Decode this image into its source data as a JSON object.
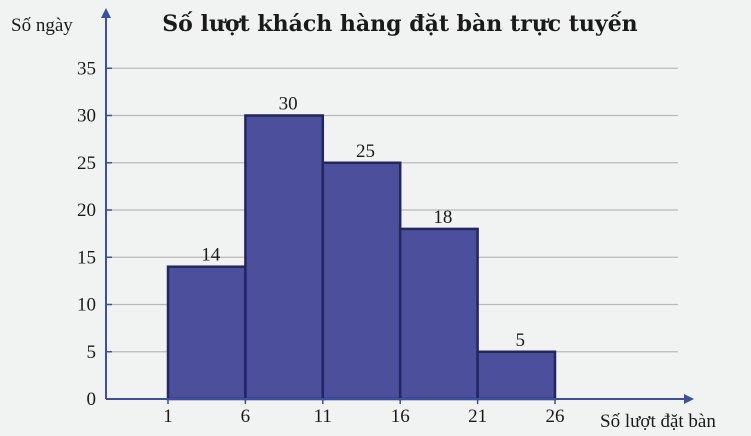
{
  "chart_data": {
    "type": "bar",
    "title": "Số lượt khách hàng đặt bàn trực tuyến",
    "xlabel": "Số lượt đặt bàn",
    "ylabel": "Số ngày",
    "bin_edges": [
      1,
      6,
      11,
      16,
      21,
      26
    ],
    "x_ticks": [
      "1",
      "6",
      "11",
      "16",
      "21",
      "26"
    ],
    "values": [
      14,
      30,
      25,
      18,
      5
    ],
    "data_labels": [
      "14",
      "30",
      "25",
      "18",
      "5"
    ],
    "y_ticks": [
      "0",
      "5",
      "10",
      "15",
      "20",
      "25",
      "30",
      "35"
    ],
    "ylim": [
      0,
      35
    ],
    "grid": true,
    "colors": {
      "bar_fill": "#4b4f9c",
      "bar_edge": "#23275e",
      "axis": "#3c4fa0",
      "grid": "#b9b9b9"
    }
  }
}
